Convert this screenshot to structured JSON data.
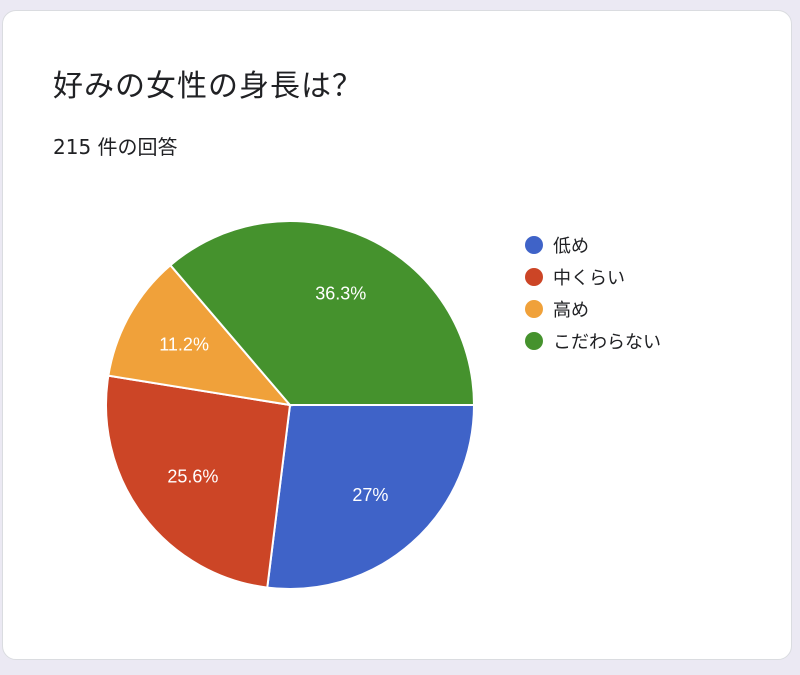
{
  "card": {
    "title": "好みの女性の身長は？",
    "response_count": "215 件の回答"
  },
  "chart_data": {
    "type": "pie",
    "title": "好みの女性の身長は？",
    "subtitle": "215 件の回答",
    "legend_position": "right",
    "categories": [
      "低め",
      "中くらい",
      "高め",
      "こだわらない"
    ],
    "values": [
      27,
      25.6,
      11.2,
      36.3
    ],
    "labels": [
      "27%",
      "25.6%",
      "11.2%",
      "36.3%"
    ],
    "colors": [
      "#3f63c8",
      "#cc4526",
      "#f0a13a",
      "#45922d"
    ],
    "start_angle": "3 o'clock",
    "direction": "clockwise"
  },
  "legend": {
    "items": [
      {
        "label": "低め",
        "color": "#3f63c8"
      },
      {
        "label": "中くらい",
        "color": "#cc4526"
      },
      {
        "label": "高め",
        "color": "#f0a13a"
      },
      {
        "label": "こだわらない",
        "color": "#45922d"
      }
    ]
  }
}
